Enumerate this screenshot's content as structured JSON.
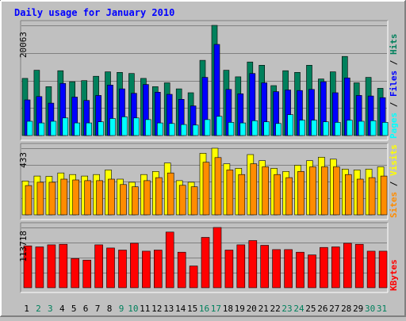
{
  "chart_data": [
    {
      "type": "bar",
      "title": "Daily usage for January 2010",
      "categories": [
        "1",
        "2",
        "3",
        "4",
        "5",
        "6",
        "7",
        "8",
        "9",
        "10",
        "11",
        "12",
        "13",
        "14",
        "15",
        "16",
        "17",
        "18",
        "19",
        "20",
        "21",
        "22",
        "23",
        "24",
        "25",
        "26",
        "27",
        "28",
        "29",
        "30",
        "31"
      ],
      "weekend_days": [
        "2",
        "3",
        "9",
        "10",
        "16",
        "17",
        "23",
        "24",
        "30",
        "31"
      ],
      "ymax_label": "20063",
      "ylim": [
        0,
        20063
      ],
      "series": [
        {
          "name": "Hits",
          "color": "#00805c",
          "values": [
            10400,
            11900,
            8900,
            11800,
            9800,
            10000,
            10800,
            11600,
            11500,
            11300,
            10400,
            8900,
            9600,
            8500,
            7800,
            13700,
            20063,
            11900,
            10700,
            13400,
            12800,
            9100,
            11800,
            11500,
            12800,
            10300,
            11600,
            14400,
            9600,
            10600,
            8600
          ]
        },
        {
          "name": "Files",
          "color": "#0000ff",
          "values": [
            6500,
            7100,
            5900,
            9500,
            7000,
            6400,
            7300,
            9200,
            8500,
            7700,
            9300,
            7900,
            7500,
            6600,
            5400,
            10600,
            16600,
            8400,
            7600,
            11300,
            9600,
            8000,
            8300,
            8200,
            8400,
            9800,
            7800,
            10500,
            7300,
            7200,
            6900
          ]
        },
        {
          "name": "Pages",
          "color": "#00ffff",
          "values": [
            2600,
            2300,
            2600,
            3200,
            2300,
            2300,
            2500,
            3100,
            3400,
            3200,
            2900,
            2300,
            2200,
            2000,
            1900,
            2900,
            3500,
            2400,
            2300,
            2700,
            2500,
            2200,
            3800,
            2800,
            2800,
            2500,
            2400,
            2800,
            2600,
            2700,
            2400
          ]
        }
      ],
      "ylabel_parts": [
        "Pages",
        "Files",
        "Hits"
      ],
      "grid": true
    },
    {
      "type": "bar",
      "categories": [
        "1",
        "2",
        "3",
        "4",
        "5",
        "6",
        "7",
        "8",
        "9",
        "10",
        "11",
        "12",
        "13",
        "14",
        "15",
        "16",
        "17",
        "18",
        "19",
        "20",
        "21",
        "22",
        "23",
        "24",
        "25",
        "26",
        "27",
        "28",
        "29",
        "30",
        "31"
      ],
      "ymax_label": "433",
      "ylim": [
        0,
        433
      ],
      "series": [
        {
          "name": "Visits",
          "color": "#ffff00",
          "values": [
            220,
            252,
            250,
            272,
            262,
            252,
            262,
            292,
            232,
            212,
            262,
            282,
            337,
            222,
            212,
            400,
            433,
            332,
            302,
            392,
            352,
            302,
            282,
            322,
            352,
            375,
            362,
            297,
            292,
            297,
            312
          ]
        },
        {
          "name": "Sites",
          "color": "#ff8c00",
          "values": [
            190,
            212,
            212,
            232,
            227,
            222,
            222,
            232,
            197,
            182,
            222,
            242,
            272,
            192,
            182,
            342,
            372,
            292,
            262,
            332,
            312,
            262,
            242,
            282,
            312,
            312,
            312,
            262,
            232,
            242,
            252
          ]
        }
      ],
      "ylabel_parts": [
        "Sites",
        "Visits"
      ],
      "grid": true
    },
    {
      "type": "bar",
      "categories": [
        "1",
        "2",
        "3",
        "4",
        "5",
        "6",
        "7",
        "8",
        "9",
        "10",
        "11",
        "12",
        "13",
        "14",
        "15",
        "16",
        "17",
        "18",
        "19",
        "20",
        "21",
        "22",
        "23",
        "24",
        "25",
        "26",
        "27",
        "28",
        "29",
        "30",
        "31"
      ],
      "ymax_label": "113718",
      "ylim": [
        0,
        113718
      ],
      "series": [
        {
          "name": "KBytes",
          "color": "#ff0000",
          "values": [
            79000,
            77000,
            81000,
            82000,
            55000,
            52000,
            81000,
            75000,
            71000,
            84000,
            69000,
            71000,
            105000,
            67000,
            41000,
            95000,
            113718,
            71000,
            81000,
            89000,
            80000,
            72000,
            72000,
            67000,
            62000,
            76000,
            77000,
            84000,
            82000,
            69000,
            69000
          ]
        }
      ],
      "ylabel_parts": [
        "KBytes"
      ],
      "grid": true
    }
  ],
  "colors": {
    "background": "#c0c0c0",
    "title": "#0000ff",
    "weekday_label": "#000000",
    "weekend_label": "#00805c",
    "grid": "#808080"
  }
}
